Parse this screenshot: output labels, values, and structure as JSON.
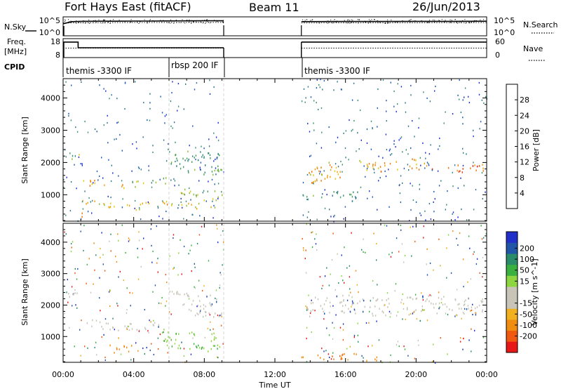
{
  "header": {
    "station": "Fort Hays East (fitACF)",
    "beam": "Beam 11",
    "date": "26/Jun/2013"
  },
  "panels": {
    "nsky": {
      "left_label": "N.Sky",
      "right_label": "N.Search",
      "left_ticks": [
        "10^5",
        "10^0"
      ],
      "right_ticks": [
        "10^5",
        "10^0"
      ]
    },
    "freq": {
      "left_label_1": "Freq.",
      "left_label_2": "[MHz]",
      "right_label": "Nave",
      "left_ticks": [
        "18",
        "8"
      ],
      "right_ticks": [
        "60",
        "0"
      ]
    },
    "cpid": {
      "label": "CPID",
      "segments": [
        {
          "text": "themis -3300 IF",
          "start_h": 0.0
        },
        {
          "text": "rbsp 200 IF",
          "start_h": 6.0
        },
        {
          "text": "themis -3300 IF",
          "start_h": 13.5
        }
      ]
    }
  },
  "axes": {
    "xlabel": "Time UT",
    "ylabel": "Slant Range [km]",
    "xticks": [
      "00:00",
      "04:00",
      "08:00",
      "12:00",
      "16:00",
      "20:00",
      "00:00"
    ]
  },
  "colors": {
    "power": [
      "#2030d8",
      "#1e5ab8",
      "#2e7a8c",
      "#3a9278",
      "#4aa35c",
      "#8fc030",
      "#e6c810",
      "#f0a010",
      "#f07808",
      "#e84818",
      "#e01818"
    ],
    "velocity": [
      "#e81818",
      "#f05a10",
      "#f08c10",
      "#f0b020",
      "#c8c4b8",
      "#c8c4b8",
      "#8ed640",
      "#3ab040",
      "#2a8c6a",
      "#2055a8",
      "#2030c8"
    ]
  },
  "chart_data": [
    {
      "type": "line",
      "title": "N.Sky / N.Search",
      "x_range_hours": [
        0,
        24
      ],
      "scale": "log",
      "data_gaps_hours": [
        [
          9.1,
          13.5
        ]
      ],
      "series": [
        {
          "name": "N.Sky",
          "x": [
            0,
            0.5,
            1,
            2,
            3,
            4,
            5,
            6,
            7,
            8,
            9.1,
            13.5,
            16,
            18,
            20,
            22,
            24
          ],
          "y": [
            10000,
            60000,
            80000,
            90000,
            90000,
            100000,
            100000,
            110000,
            120000,
            130000,
            130000,
            60000,
            70000,
            70000,
            80000,
            80000,
            90000
          ]
        },
        {
          "name": "N.Search",
          "x": [
            0,
            2,
            4,
            6,
            8,
            9.1,
            13.5,
            16,
            20,
            24
          ],
          "y": [
            20000,
            25000,
            28000,
            30000,
            32000,
            32000,
            20000,
            22000,
            24000,
            26000
          ]
        }
      ]
    },
    {
      "type": "line",
      "title": "Freq. [MHz] / Nave",
      "x_range_hours": [
        0,
        24
      ],
      "ylim_freq": [
        8,
        18
      ],
      "ylim_nave": [
        0,
        60
      ],
      "data_gaps_hours": [
        [
          9.1,
          13.5
        ]
      ],
      "series": [
        {
          "name": "Freq. [MHz]",
          "x": [
            0,
            0.85,
            0.85,
            9.1,
            13.5,
            24
          ],
          "y": [
            16.2,
            16.2,
            13.2,
            13.2,
            16.2,
            16.2
          ]
        },
        {
          "name": "Nave",
          "x": [
            0,
            0.85,
            0.85,
            9.1,
            13.5,
            24
          ],
          "y": [
            30,
            30,
            30,
            30,
            30,
            30
          ]
        }
      ]
    },
    {
      "type": "heatmap",
      "title": "Power [dB]",
      "xlabel": "Time UT",
      "ylabel": "Slant Range [km]",
      "x_range_hours": [
        0,
        24
      ],
      "ylim": [
        180,
        4600
      ],
      "y_ticks": [
        1000,
        2000,
        3000,
        4000
      ],
      "colorbar": {
        "label": "Power [dB]",
        "range": [
          0,
          32
        ],
        "ticks": [
          4,
          8,
          12,
          16,
          20,
          24,
          28
        ]
      },
      "data_gaps_hours": [
        [
          9.1,
          13.5
        ]
      ],
      "bands": [
        {
          "t": [
            0.1,
            0.9
          ],
          "range_km": [
            2000,
            2300
          ],
          "level_db": 14
        },
        {
          "t": [
            1.0,
            3.5
          ],
          "range_km": [
            1250,
            1450
          ],
          "level_db": 22
        },
        {
          "t": [
            3.5,
            6.0
          ],
          "range_km": [
            1300,
            1500
          ],
          "level_db": 16
        },
        {
          "t": [
            6.0,
            9.0
          ],
          "range_km": [
            1700,
            2400
          ],
          "level_db": 12
        },
        {
          "t": [
            1.0,
            9.0
          ],
          "range_km": [
            600,
            800
          ],
          "level_db": 20
        },
        {
          "t": [
            6.5,
            9.0
          ],
          "range_km": [
            900,
            1200
          ],
          "level_db": 18
        },
        {
          "t": [
            0.9,
            1.6
          ],
          "range_km": [
            250,
            400
          ],
          "level_db": 28
        },
        {
          "t": [
            13.5,
            16.0
          ],
          "range_km": [
            1400,
            2000
          ],
          "level_db": 22
        },
        {
          "t": [
            16.0,
            20.0
          ],
          "range_km": [
            1800,
            2100
          ],
          "level_db": 22
        },
        {
          "t": [
            20.0,
            24.0
          ],
          "range_km": [
            1750,
            2000
          ],
          "level_db": 26
        },
        {
          "t": [
            13.5,
            17.0
          ],
          "range_km": [
            850,
            1100
          ],
          "level_db": 10
        }
      ]
    },
    {
      "type": "heatmap",
      "title": "Velocity [m s^-1]",
      "xlabel": "Time UT",
      "ylabel": "Slant Range [km]",
      "x_range_hours": [
        0,
        24
      ],
      "ylim": [
        180,
        4600
      ],
      "y_ticks": [
        1000,
        2000,
        3000,
        4000
      ],
      "colorbar": {
        "label": "Velocity [m s^-1]",
        "ticks": [
          -200,
          -100,
          -50,
          -15,
          15,
          50,
          100,
          200
        ]
      },
      "data_gaps_hours": [
        [
          9.1,
          13.5
        ]
      ],
      "bands": [
        {
          "t": [
            0.1,
            0.9
          ],
          "range_km": [
            2000,
            2400
          ],
          "velocity": 0
        },
        {
          "t": [
            1.0,
            6.0
          ],
          "range_km": [
            1250,
            1500
          ],
          "velocity": 0
        },
        {
          "t": [
            6.0,
            9.0
          ],
          "range_km": [
            1700,
            2400
          ],
          "velocity": 0
        },
        {
          "t": [
            2.5,
            4.0
          ],
          "range_km": [
            500,
            800
          ],
          "velocity": -40
        },
        {
          "t": [
            5.5,
            9.0
          ],
          "range_km": [
            600,
            1200
          ],
          "velocity": 40
        },
        {
          "t": [
            13.5,
            24.0
          ],
          "range_km": [
            1700,
            2300
          ],
          "velocity": 0
        },
        {
          "t": [
            13.5,
            18.0
          ],
          "range_km": [
            250,
            450
          ],
          "velocity": -60
        }
      ]
    }
  ]
}
